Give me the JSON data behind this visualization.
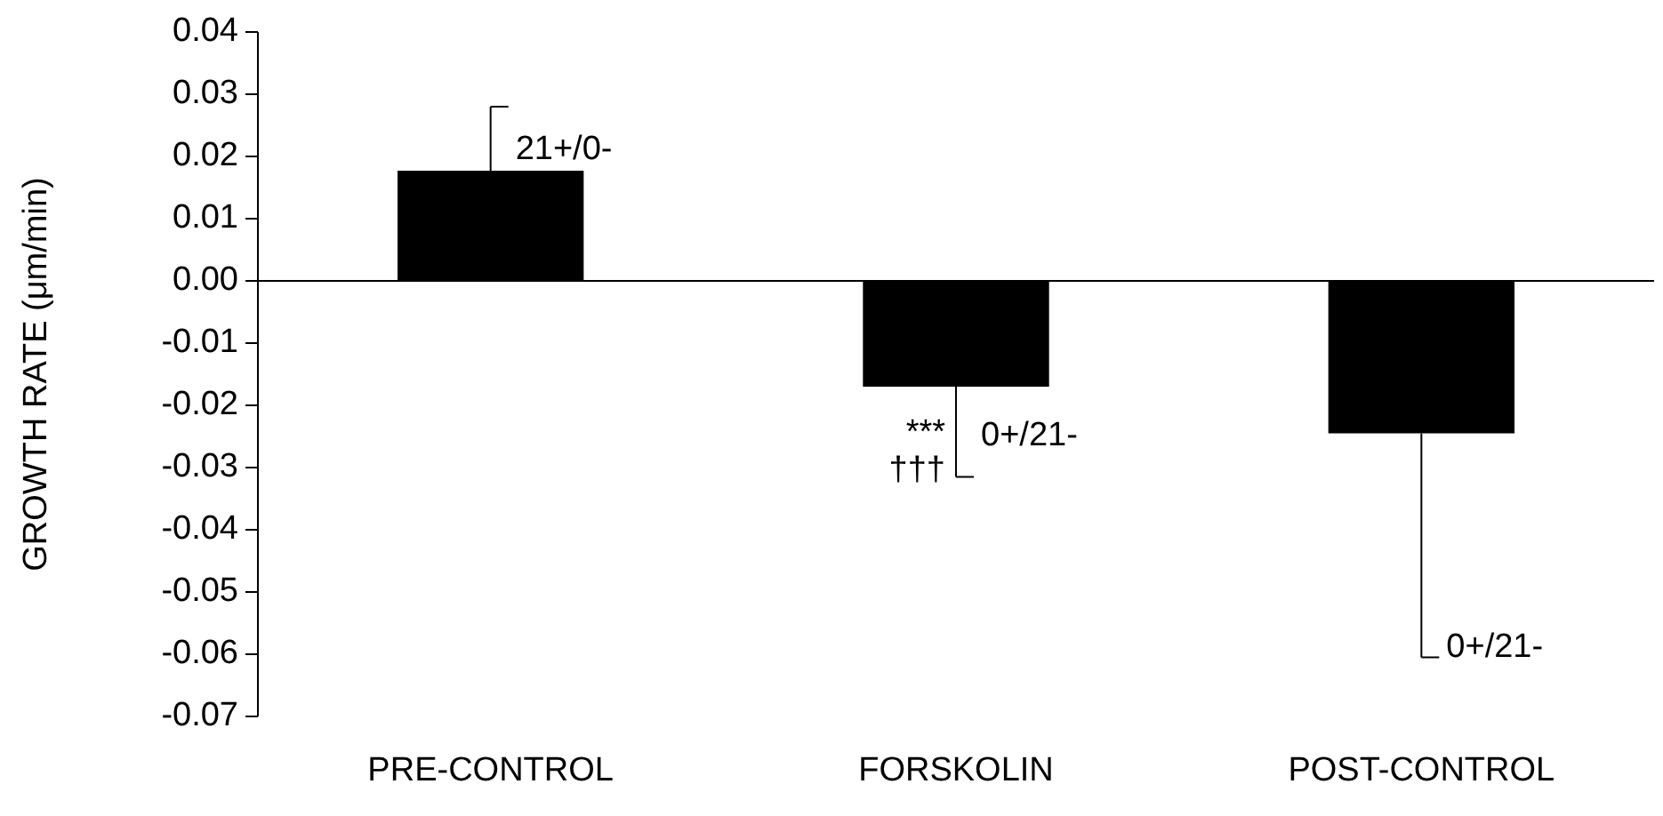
{
  "chart_data": {
    "type": "bar",
    "ylabel": "GROWTH RATE (μm/min)",
    "categories": [
      "PRE-CONTROL",
      "FORSKOLIN",
      "POST-CONTROL"
    ],
    "values": [
      0.0177,
      -0.017,
      -0.0245
    ],
    "color": "#000000",
    "errors": [
      [
        0.0177,
        0.028
      ],
      [
        -0.0315,
        -0.017
      ],
      [
        -0.0605,
        -0.0245
      ]
    ],
    "ylim": [
      -0.07,
      0.04
    ],
    "yticks": [
      {
        "value": -0.07,
        "label": "-0.07"
      },
      {
        "value": -0.06,
        "label": "-0.06"
      },
      {
        "value": -0.05,
        "label": "-0.05"
      },
      {
        "value": -0.04,
        "label": "-0.04"
      },
      {
        "value": -0.03,
        "label": "-0.03"
      },
      {
        "value": -0.02,
        "label": "-0.02"
      },
      {
        "value": -0.01,
        "label": "-0.01"
      },
      {
        "value": 0,
        "label": "0.00"
      },
      {
        "value": 0.01,
        "label": "0.01"
      },
      {
        "value": 0.02,
        "label": "0.02"
      },
      {
        "value": 0.03,
        "label": "0.03"
      },
      {
        "value": 0.04,
        "label": "0.04"
      }
    ],
    "annotations": [
      {
        "text": "21+/0-",
        "x": "PRE-CONTROL",
        "y": 0.021
      },
      {
        "text": "0+/21-",
        "x": "FORSKOLIN",
        "y": -0.025
      },
      {
        "text": "***",
        "x": "FORSKOLIN",
        "y": -0.0245
      },
      {
        "text": "†††",
        "x": "FORSKOLIN",
        "y": -0.0305
      },
      {
        "text": "0+/21-",
        "x": "POST-CONTROL",
        "y": -0.059
      }
    ]
  }
}
